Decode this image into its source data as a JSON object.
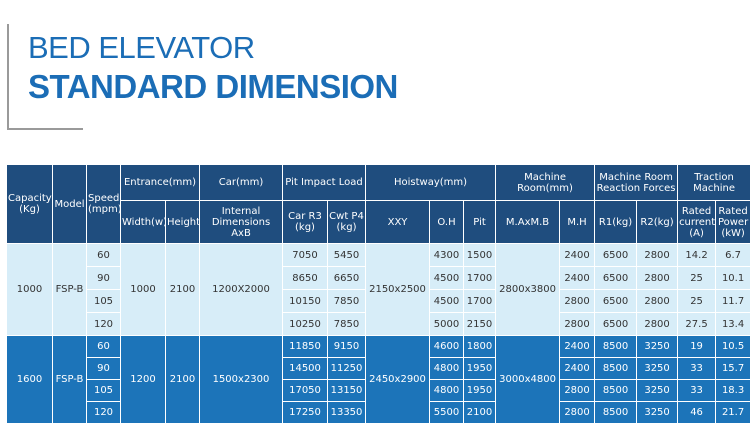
{
  "header": {
    "title_line1": "BED ELEVATOR",
    "title_line2": "STANDARD DIMENSION"
  },
  "table": {
    "header_row1": [
      "Capacity (Kg)",
      "Model",
      "Speed (mpm)",
      "Entrance(mm)",
      "Car(mm)",
      "Pit Impact Load",
      "Hoistway(mm)",
      "Machine Room(mm)",
      "Machine Room Reaction Forces",
      "Traction Machine"
    ],
    "header_row2": [
      "Width(w)",
      "Height",
      "Internal Dimensions AxB",
      "Car R3 (kg)",
      "Cwt P4 (kg)",
      "XXY",
      "O.H",
      "Pit",
      "M.AxM.B",
      "M.H",
      "R1(kg)",
      "R2(kg)",
      "Rated current (A)",
      "Rated Power (kW)"
    ],
    "groups": [
      {
        "capacity": 1000,
        "model": "FSP-B",
        "width": 1000,
        "height": 2100,
        "internal": "1200X2000",
        "hoistway": "2150x2500",
        "machine_room": "2800x3800",
        "rows": [
          {
            "speed": 60,
            "car_r3": 7050,
            "cwt_p4": 5450,
            "oh": 4300,
            "pit": 1500,
            "mh": 2400,
            "r1": 6500,
            "r2": 2800,
            "current": 14.2,
            "power": 6.7
          },
          {
            "speed": 90,
            "car_r3": 8650,
            "cwt_p4": 6650,
            "oh": 4500,
            "pit": 1700,
            "mh": 2400,
            "r1": 6500,
            "r2": 2800,
            "current": 25,
            "power": 10.1
          },
          {
            "speed": 105,
            "car_r3": 10150,
            "cwt_p4": 7850,
            "oh": 4500,
            "pit": 1700,
            "mh": 2800,
            "r1": 6500,
            "r2": 2800,
            "current": 25,
            "power": 11.7
          },
          {
            "speed": 120,
            "car_r3": 10250,
            "cwt_p4": 7850,
            "oh": 5000,
            "pit": 2150,
            "mh": 2800,
            "r1": 6500,
            "r2": 2800,
            "current": 27.5,
            "power": 13.4
          }
        ]
      },
      {
        "capacity": 1600,
        "model": "FSP-B",
        "width": 1200,
        "height": 2100,
        "internal": "1500x2300",
        "hoistway": "2450x2900",
        "machine_room": "3000x4800",
        "rows": [
          {
            "speed": 60,
            "car_r3": 11850,
            "cwt_p4": 9150,
            "oh": 4600,
            "pit": 1800,
            "mh": 2400,
            "r1": 8500,
            "r2": 3250,
            "current": 19,
            "power": 10.5
          },
          {
            "speed": 90,
            "car_r3": 14500,
            "cwt_p4": 11250,
            "oh": 4800,
            "pit": 1950,
            "mh": 2400,
            "r1": 8500,
            "r2": 3250,
            "current": 33,
            "power": 15.7
          },
          {
            "speed": 105,
            "car_r3": 17050,
            "cwt_p4": 13150,
            "oh": 4800,
            "pit": 1950,
            "mh": 2800,
            "r1": 8500,
            "r2": 3250,
            "current": 33,
            "power": 18.3
          },
          {
            "speed": 120,
            "car_r3": 17250,
            "cwt_p4": 13350,
            "oh": 5500,
            "pit": 2100,
            "mh": 2800,
            "r1": 8500,
            "r2": 3250,
            "current": 46,
            "power": 21.7
          }
        ]
      }
    ]
  }
}
